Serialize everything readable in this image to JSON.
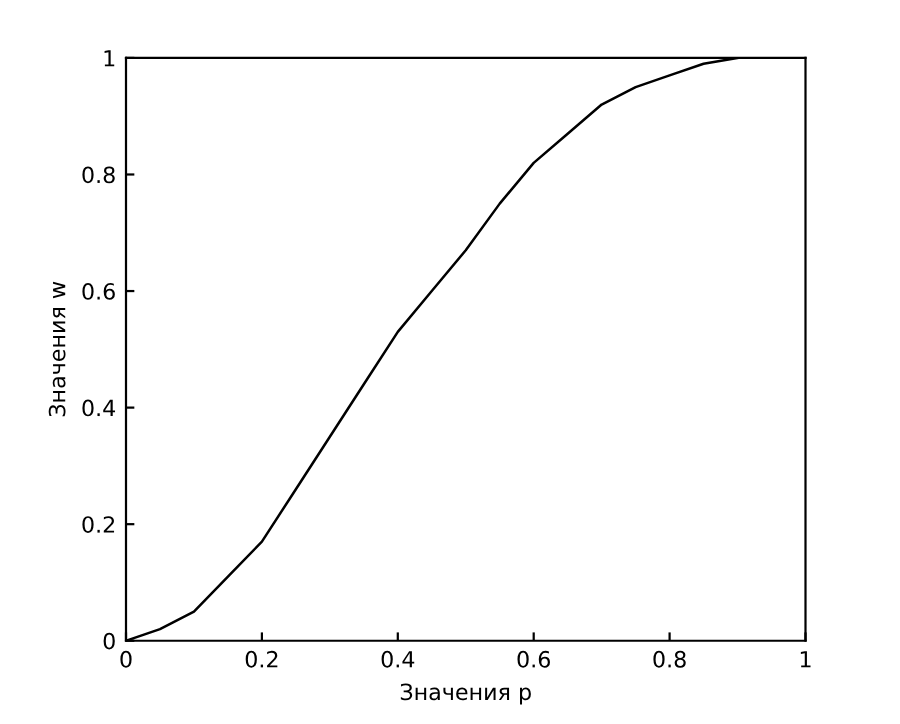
{
  "chart_data": {
    "type": "line",
    "xlabel": "Значения p",
    "ylabel": "Значения w",
    "x": [
      0,
      0.05,
      0.1,
      0.15,
      0.2,
      0.25,
      0.3,
      0.35,
      0.4,
      0.45,
      0.5,
      0.55,
      0.6,
      0.65,
      0.7,
      0.75,
      0.8,
      0.85,
      0.9
    ],
    "series": [
      {
        "color": "#000000",
        "values": [
          0,
          0.02,
          0.05,
          0.11,
          0.17,
          0.26,
          0.35,
          0.44,
          0.53,
          0.6,
          0.67,
          0.75,
          0.82,
          0.87,
          0.92,
          0.95,
          0.97,
          0.99,
          1.0
        ]
      }
    ],
    "xlim": [
      0,
      1
    ],
    "ylim": [
      0,
      1
    ],
    "xticks": [
      0,
      0.2,
      0.4,
      0.6,
      0.8,
      1
    ],
    "yticks": [
      0,
      0.2,
      0.4,
      0.6,
      0.8,
      1
    ],
    "grid": false,
    "legend": false,
    "marker": "none",
    "line_style": "solid"
  }
}
